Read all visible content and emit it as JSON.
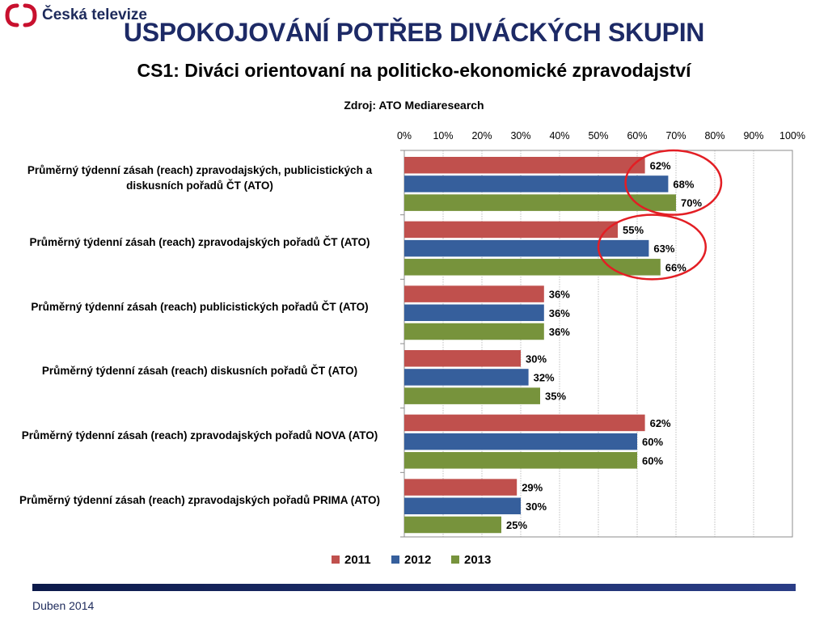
{
  "brand": {
    "name": "Česká televize",
    "logo_icon": "ct-logo-icon",
    "brand_red": "#c8102e",
    "brand_navy": "#1d2a5b"
  },
  "header": {
    "title": "USPOKOJOVÁNÍ POTŘEB DIVÁCKÝCH SKUPIN",
    "subtitle": "CS1: Diváci orientovaní na politicko-ekonomické zpravodajství"
  },
  "footer": {
    "date": "Duben 2014"
  },
  "chart_data": {
    "type": "bar",
    "orientation": "horizontal",
    "title": "Zdroj: ATO Mediaresearch",
    "x_ticks": [
      "0%",
      "10%",
      "20%",
      "30%",
      "40%",
      "50%",
      "60%",
      "70%",
      "80%",
      "90%",
      "100%"
    ],
    "xlim": [
      0,
      100
    ],
    "x_axis_position": "top",
    "grid": true,
    "legend": "bottom",
    "categories": [
      "Průměrný týdenní zásah (reach) zpravodajských, publicistických a diskusních pořadů ČT (ATO)",
      "Průměrný týdenní zásah (reach) zpravodajských pořadů ČT (ATO)",
      "Průměrný týdenní zásah (reach) publicistických pořadů ČT (ATO)",
      "Průměrný týdenní zásah (reach) diskusních pořadů ČT (ATO)",
      "Průměrný týdenní zásah (reach) zpravodajských pořadů NOVA (ATO)",
      "Průměrný týdenní zásah (reach) zpravodajských pořadů PRIMA (ATO)"
    ],
    "series": [
      {
        "name": "2011",
        "color": "#c0504d",
        "values": [
          62,
          55,
          36,
          30,
          62,
          29
        ]
      },
      {
        "name": "2012",
        "color": "#365f9c",
        "values": [
          68,
          63,
          36,
          32,
          60,
          30
        ]
      },
      {
        "name": "2013",
        "color": "#77933c",
        "values": [
          70,
          66,
          36,
          35,
          60,
          25
        ]
      }
    ],
    "value_suffix": "%",
    "highlights": [
      {
        "category_index": 0,
        "shape": "ellipse",
        "color": "#e31e24"
      },
      {
        "category_index": 1,
        "shape": "ellipse",
        "color": "#e31e24"
      }
    ]
  }
}
